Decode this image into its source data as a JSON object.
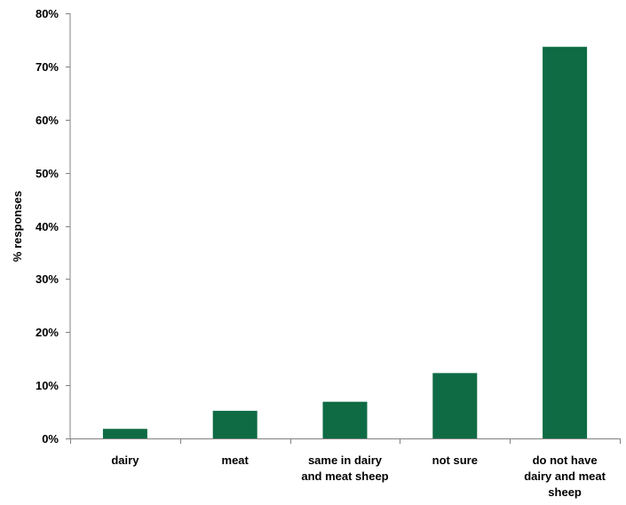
{
  "chart_data": {
    "type": "bar",
    "categories": [
      [
        "dairy"
      ],
      [
        "meat"
      ],
      [
        "same in dairy",
        "and meat sheep"
      ],
      [
        "not sure"
      ],
      [
        "do not have",
        "dairy and meat",
        "sheep"
      ]
    ],
    "values": [
      1.8,
      5.2,
      6.9,
      12.3,
      73.7
    ],
    "ylabel": "% responses",
    "ylim": [
      0,
      80
    ],
    "yticks": [
      0,
      10,
      20,
      30,
      40,
      50,
      60,
      70,
      80
    ],
    "ytick_labels": [
      "0%",
      "10%",
      "20%",
      "30%",
      "40%",
      "50%",
      "60%",
      "70%",
      "80%"
    ],
    "grid": false,
    "colors": {
      "bar": "#0e6b44",
      "axis": "#808080"
    }
  }
}
